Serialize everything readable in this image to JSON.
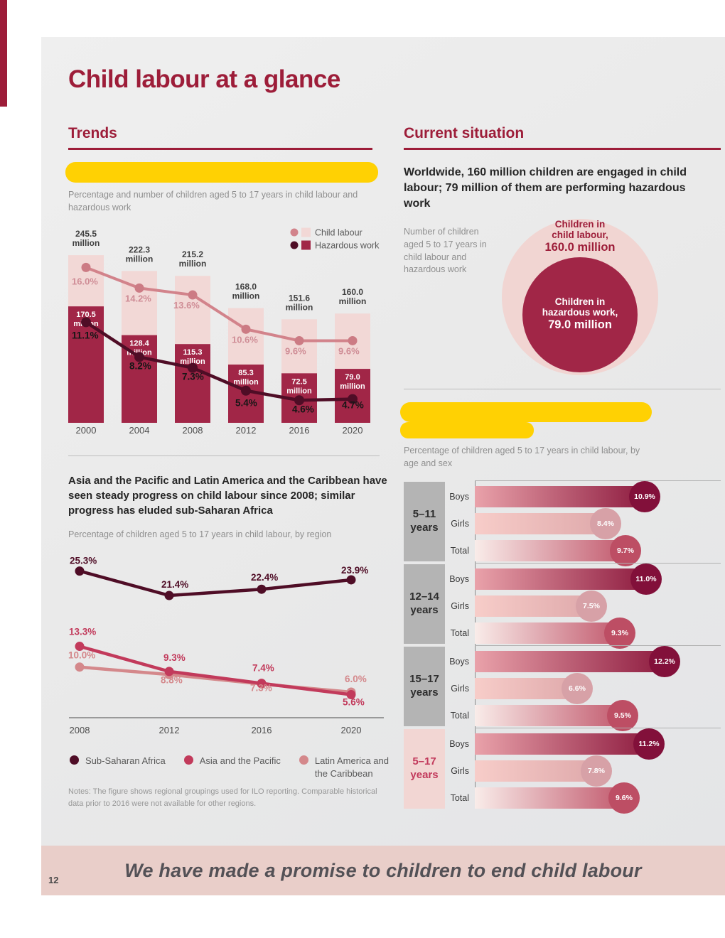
{
  "page": {
    "title": "Child labour at a glance",
    "page_number": "12",
    "footer_quote": "We have made a promise to children to end child labour"
  },
  "trends": {
    "heading": "Trends",
    "statement": "Asia and the Pacific and Latin America and the Caribbean have seen steady progress on child labour since 2008; similar progress has eluded sub-Saharan Africa"
  },
  "current": {
    "heading": "Current situation",
    "statement": "Worldwide, 160 million children are engaged in child labour; 79 million of them are performing hazardous work"
  },
  "chart_data": [
    {
      "id": "trend-bar-line",
      "type": "bar",
      "caption": "Percentage and number of children aged 5 to 17 years in child labour and hazardous work",
      "categories": [
        "2000",
        "2004",
        "2008",
        "2012",
        "2016",
        "2020"
      ],
      "unit_label": "million",
      "series": [
        {
          "name": "Child labour",
          "millions": [
            245.5,
            222.3,
            215.2,
            168.0,
            151.6,
            160.0
          ],
          "percent": [
            16.0,
            14.2,
            13.6,
            10.6,
            9.6,
            9.6
          ]
        },
        {
          "name": "Hazardous work",
          "millions": [
            170.5,
            128.4,
            115.3,
            85.3,
            72.5,
            79.0
          ],
          "percent": [
            11.1,
            8.2,
            7.3,
            5.4,
            4.6,
            4.7
          ]
        }
      ]
    },
    {
      "id": "region-lines",
      "type": "line",
      "caption": "Percentage of children aged 5 to 17 years in child labour, by region",
      "x": [
        "2008",
        "2012",
        "2016",
        "2020"
      ],
      "series": [
        {
          "name": "Sub-Saharan Africa",
          "values": [
            25.3,
            21.4,
            22.4,
            23.9
          ]
        },
        {
          "name": "Asia and the Pacific",
          "values": [
            13.3,
            9.3,
            7.4,
            5.6
          ]
        },
        {
          "name": "Latin America and the Caribbean",
          "values": [
            10.0,
            8.8,
            7.3,
            6.0
          ]
        }
      ],
      "notes": "Notes: The figure shows regional groupings used for ILO reporting. Comparable historical data prior to 2016 were not available for other regions."
    },
    {
      "id": "nested-circles",
      "type": "pie",
      "caption": "Number of children aged 5 to 17 years in child labour and hazardous work",
      "outer": {
        "line1": "Children in",
        "line2": "child labour,",
        "value": "160.0 million"
      },
      "inner": {
        "line1": "Children in",
        "line2": "hazardous work,",
        "value": "79.0 million"
      }
    },
    {
      "id": "age-sex-bars",
      "type": "bar",
      "caption": "Percentage of children aged 5 to 17 years in child labour, by age and sex",
      "rows": [
        "Boys",
        "Girls",
        "Total"
      ],
      "groups": [
        {
          "label_line1": "5–11",
          "label_line2": "years",
          "values": [
            10.9,
            8.4,
            9.7
          ],
          "highlight": false
        },
        {
          "label_line1": "12–14",
          "label_line2": "years",
          "values": [
            11.0,
            7.5,
            9.3
          ],
          "highlight": false
        },
        {
          "label_line1": "15–17",
          "label_line2": "years",
          "values": [
            12.2,
            6.6,
            9.5
          ],
          "highlight": false
        },
        {
          "label_line1": "5–17",
          "label_line2": "years",
          "values": [
            11.2,
            7.8,
            9.6
          ],
          "highlight": true
        }
      ]
    }
  ],
  "colors": {
    "accent": "#9d1d39",
    "highlight_yellow": "#ffd103",
    "light_pink_bar": "#f2d8d6",
    "dark_red_bar": "#a12647",
    "deep_maroon_line": "#4f0d26",
    "rose_line": "#d2838b",
    "asia_pacific_line": "#c23a5b",
    "latin_america_line": "#d4888b",
    "banner_pink": "#e9cec9"
  }
}
